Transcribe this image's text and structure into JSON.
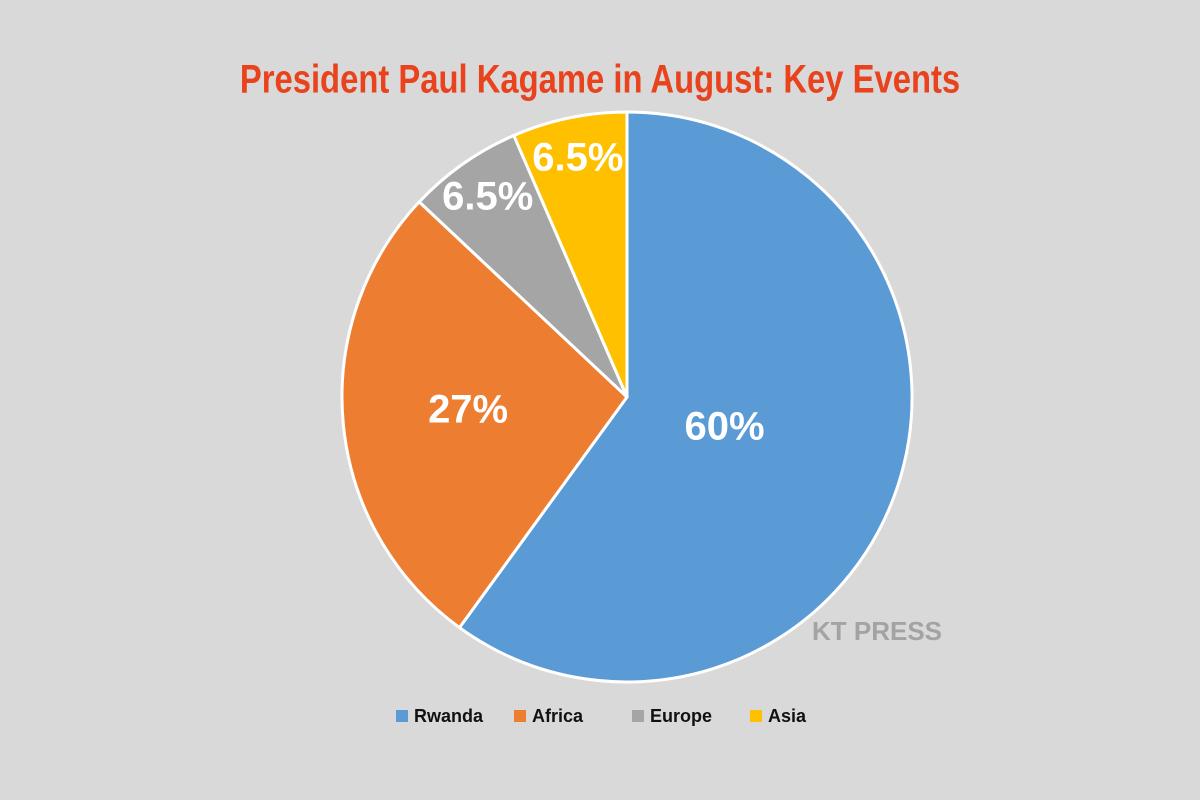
{
  "chart_data": {
    "type": "pie",
    "title": "President Paul Kagame in August: Key Events",
    "categories": [
      "Rwanda",
      "Africa",
      "Europe",
      "Asia"
    ],
    "values": [
      60,
      27,
      6.5,
      6.5
    ],
    "value_labels": [
      "60%",
      "27%",
      "6.5%",
      "6.5%"
    ],
    "colors": [
      "#5b9bd5",
      "#ed7d31",
      "#a5a5a5",
      "#ffc000"
    ],
    "legend": "bottom",
    "watermark": "KT PRESS"
  }
}
